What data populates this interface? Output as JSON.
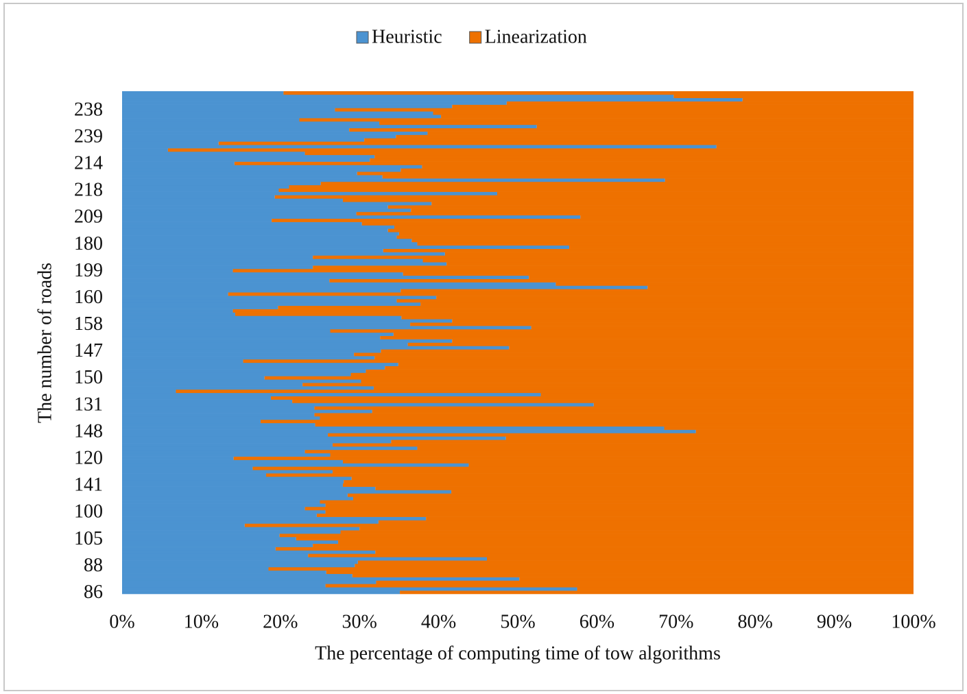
{
  "chart_data": {
    "type": "stacked-barh",
    "xlabel": "The percentage of computing time of tow algorithms",
    "ylabel": "The number of roads",
    "categories": [
      "86",
      null,
      null,
      null,
      null,
      null,
      null,
      null,
      "88",
      null,
      null,
      null,
      null,
      null,
      null,
      null,
      "105",
      null,
      null,
      null,
      null,
      null,
      null,
      null,
      "100",
      null,
      null,
      null,
      null,
      null,
      null,
      null,
      "141",
      null,
      null,
      null,
      null,
      null,
      null,
      null,
      "120",
      null,
      null,
      null,
      null,
      null,
      null,
      null,
      "148",
      null,
      null,
      null,
      null,
      null,
      null,
      null,
      "131",
      null,
      null,
      null,
      null,
      null,
      null,
      null,
      "150",
      null,
      null,
      null,
      null,
      null,
      null,
      null,
      "147",
      null,
      null,
      null,
      null,
      null,
      null,
      null,
      "158",
      null,
      null,
      null,
      null,
      null,
      null,
      null,
      "160",
      null,
      null,
      null,
      null,
      null,
      null,
      null,
      "199",
      null,
      null,
      null,
      null,
      null,
      null,
      null,
      "180",
      null,
      null,
      null,
      null,
      null,
      null,
      null,
      "209",
      null,
      null,
      null,
      null,
      null,
      null,
      null,
      "218",
      null,
      null,
      null,
      null,
      null,
      null,
      null,
      "214",
      null,
      null,
      null,
      null,
      null,
      null,
      null,
      "239",
      null,
      null,
      null,
      null,
      null,
      null,
      null,
      "238",
      null,
      null,
      null,
      null,
      null
    ],
    "series": [
      {
        "name": "Heuristic",
        "color": "#4b93d1",
        "values": [
          35.1,
          57.5,
          25.7,
          32.1,
          50.2,
          29.1,
          25.8,
          18.5,
          29.4,
          29.8,
          46.1,
          23.5,
          32.0,
          19.4,
          24.1,
          27.3,
          22.0,
          19.9,
          27.6,
          30.0,
          15.5,
          32.4,
          38.4,
          24.6,
          25.7,
          23.1,
          25.7,
          25.0,
          29.2,
          28.5,
          41.6,
          32.0,
          27.9,
          28.0,
          29.0,
          18.2,
          26.6,
          16.5,
          43.8,
          27.9,
          14.1,
          26.3,
          23.1,
          37.3,
          26.6,
          34.0,
          48.5,
          26.0,
          72.5,
          68.5,
          24.4,
          17.5,
          25.0,
          24.3,
          31.6,
          24.3,
          59.6,
          21.5,
          18.8,
          52.9,
          6.8,
          31.8,
          22.8,
          30.2,
          18.0,
          28.9,
          30.8,
          33.2,
          34.9,
          15.3,
          31.9,
          29.3,
          32.7,
          48.9,
          36.1,
          41.7,
          32.6,
          34.3,
          26.3,
          51.7,
          36.4,
          41.7,
          35.3,
          14.3,
          14.0,
          19.7,
          37.7,
          34.7,
          39.7,
          13.4,
          35.2,
          66.4,
          54.8,
          26.2,
          51.4,
          35.5,
          14.0,
          24.1,
          41.0,
          38.0,
          24.1,
          40.8,
          33.0,
          56.5,
          37.3,
          36.6,
          34.7,
          35.0,
          33.6,
          34.4,
          30.3,
          18.9,
          57.9,
          29.6,
          36.5,
          33.6,
          39.1,
          27.9,
          19.3,
          47.4,
          19.8,
          21.1,
          25.1,
          68.6,
          32.9,
          29.7,
          35.2,
          37.9,
          14.2,
          31.3,
          31.9,
          23.1,
          5.8,
          75.1,
          12.2,
          30.6,
          34.6,
          38.6,
          28.7,
          52.4,
          32.5,
          22.4,
          40.3,
          39.3,
          26.9,
          41.7,
          48.6,
          78.4,
          69.7,
          20.4
        ]
      },
      {
        "name": "Linearization",
        "color": "#ee7100",
        "values": [
          64.9,
          42.5,
          74.3,
          67.9,
          49.8,
          70.9,
          74.2,
          81.5,
          70.6,
          70.2,
          53.9,
          76.5,
          68.0,
          80.6,
          75.9,
          72.7,
          78.0,
          80.1,
          72.4,
          70.0,
          84.5,
          67.6,
          61.6,
          75.4,
          74.3,
          76.9,
          74.3,
          75.0,
          70.8,
          71.5,
          58.4,
          68.0,
          72.1,
          72.0,
          71.0,
          81.8,
          73.4,
          83.5,
          56.2,
          72.1,
          85.9,
          73.7,
          76.9,
          62.7,
          73.4,
          66.0,
          51.5,
          74.0,
          27.5,
          31.5,
          75.6,
          82.5,
          75.0,
          75.7,
          68.4,
          75.7,
          40.4,
          78.5,
          81.2,
          47.1,
          93.2,
          68.2,
          77.2,
          69.8,
          82.0,
          71.1,
          69.2,
          66.8,
          65.1,
          84.7,
          68.1,
          70.7,
          67.3,
          51.1,
          63.9,
          58.3,
          67.4,
          65.7,
          73.7,
          48.3,
          63.6,
          58.3,
          64.7,
          85.7,
          86.0,
          80.3,
          62.3,
          65.3,
          60.3,
          86.6,
          64.8,
          33.6,
          45.2,
          73.8,
          48.6,
          64.5,
          86.0,
          75.9,
          59.0,
          62.0,
          75.9,
          59.2,
          67.0,
          43.5,
          62.7,
          63.4,
          65.3,
          65.0,
          66.4,
          65.6,
          69.7,
          81.1,
          42.1,
          70.4,
          63.5,
          66.4,
          60.9,
          72.1,
          80.7,
          52.6,
          80.2,
          78.9,
          74.9,
          31.4,
          67.1,
          70.3,
          64.8,
          62.1,
          85.8,
          68.7,
          68.1,
          76.9,
          94.2,
          24.9,
          87.8,
          69.4,
          65.4,
          61.4,
          71.3,
          47.6,
          67.5,
          77.6,
          59.7,
          60.7,
          73.1,
          58.3,
          51.4,
          21.6,
          30.3,
          79.6
        ]
      }
    ],
    "xlim": [
      0,
      100
    ],
    "xticks": [
      {
        "value": 0,
        "label": "0%"
      },
      {
        "value": 10,
        "label": "10%"
      },
      {
        "value": 20,
        "label": "20%"
      },
      {
        "value": 30,
        "label": "30%"
      },
      {
        "value": 40,
        "label": "40%"
      },
      {
        "value": 50,
        "label": "50%"
      },
      {
        "value": 60,
        "label": "60%"
      },
      {
        "value": 70,
        "label": "70%"
      },
      {
        "value": 80,
        "label": "80%"
      },
      {
        "value": 90,
        "label": "90%"
      },
      {
        "value": 100,
        "label": "100%"
      }
    ],
    "legend": "top"
  }
}
